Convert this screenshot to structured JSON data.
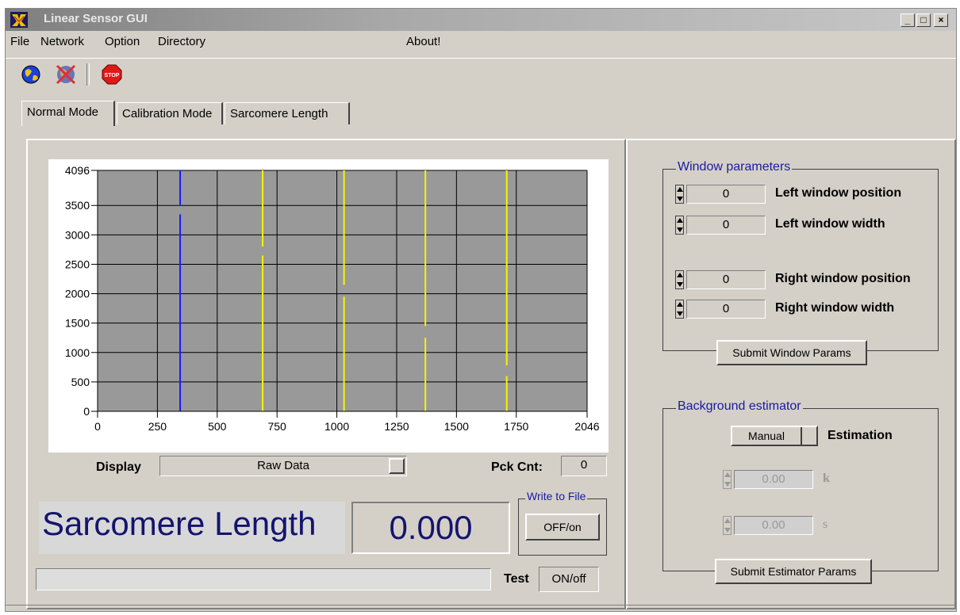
{
  "window": {
    "title": "Linear Sensor GUI",
    "minimize": "_",
    "maximize": "□",
    "close": "×"
  },
  "menu": [
    "File",
    "Network",
    "Option",
    "Directory",
    "About!"
  ],
  "toolbar": {
    "stop_label": "STOP"
  },
  "tabs": [
    "Normal Mode",
    "Calibration Mode",
    "Sarcomere Length"
  ],
  "graph": {
    "y_ticks": [
      "4096",
      "3500",
      "3000",
      "2500",
      "2000",
      "1500",
      "1000",
      "500",
      "0"
    ],
    "x_ticks": [
      "0",
      "250",
      "500",
      "750",
      "1000",
      "1250",
      "1500",
      "1750",
      "2046"
    ],
    "colors": {
      "plot_bg": "#999999",
      "grid": "#000000",
      "blue": "#1a1aff",
      "yellow": "#f5f500"
    }
  },
  "display": {
    "label": "Display",
    "value": "Raw Data"
  },
  "pck_cnt": {
    "label": "Pck Cnt:",
    "value": "0"
  },
  "sarcomere": {
    "label": "Sarcomere Length",
    "value": "0.000"
  },
  "write_to_file": {
    "title": "Write to File",
    "button": "OFF/on"
  },
  "test": {
    "label": "Test",
    "value": "ON/off"
  },
  "window_params": {
    "title": "Window parameters",
    "rows": [
      {
        "value": "0",
        "label": "Left window position"
      },
      {
        "value": "0",
        "label": "Left window width"
      },
      {
        "value": "0",
        "label": "Right window position"
      },
      {
        "value": "0",
        "label": "Right window width"
      }
    ],
    "submit": "Submit Window Params"
  },
  "background": {
    "title": "Background estimator",
    "mode": "Manual",
    "mode_label": "Estimation",
    "k_value": "0.00",
    "k_label": "k",
    "s_value": "0.00",
    "s_label": "s",
    "submit": "Submit Estimator Params"
  }
}
